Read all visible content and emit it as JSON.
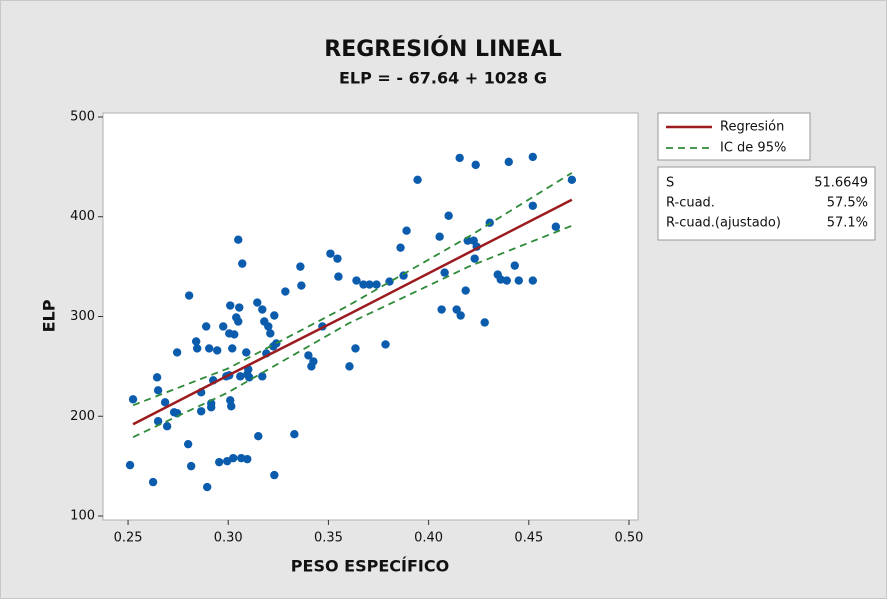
{
  "chart_data": {
    "type": "scatter",
    "title": "REGRESIÓN LINEAL",
    "subtitle": "ELP = - 67.64 + 1028 G",
    "x_label": "PESO ESPECÍFICO",
    "y_label": "ELP",
    "xlim": [
      0.2375,
      0.5045
    ],
    "ylim": [
      96,
      504
    ],
    "xticks": [
      {
        "value": 0.25,
        "label": "0.25"
      },
      {
        "value": 0.3,
        "label": "0.30"
      },
      {
        "value": 0.35,
        "label": "0.35"
      },
      {
        "value": 0.4,
        "label": "0.40"
      },
      {
        "value": 0.45,
        "label": "0.45"
      },
      {
        "value": 0.5,
        "label": "0.50"
      }
    ],
    "yticks": [
      100,
      200,
      300,
      400,
      500
    ],
    "points": {
      "color": "#0b5cad",
      "x": [
        0.251,
        0.2525,
        0.2625,
        0.2645,
        0.265,
        0.265,
        0.2685,
        0.2695,
        0.273,
        0.2745,
        0.2745,
        0.2805,
        0.28,
        0.2815,
        0.284,
        0.2845,
        0.2865,
        0.2865,
        0.2895,
        0.289,
        0.2905,
        0.2915,
        0.2915,
        0.2925,
        0.2945,
        0.2955,
        0.2975,
        0.299,
        0.2995,
        0.3005,
        0.3005,
        0.301,
        0.301,
        0.3015,
        0.302,
        0.3025,
        0.303,
        0.304,
        0.305,
        0.3055,
        0.306,
        0.3065,
        0.307,
        0.305,
        0.309,
        0.3095,
        0.3095,
        0.31,
        0.3105,
        0.3145,
        0.315,
        0.317,
        0.317,
        0.318,
        0.319,
        0.32,
        0.321,
        0.3225,
        0.323,
        0.323,
        0.324,
        0.3285,
        0.333,
        0.336,
        0.3365,
        0.34,
        0.3415,
        0.3425,
        0.347,
        0.351,
        0.3545,
        0.355,
        0.3605,
        0.3635,
        0.364,
        0.3675,
        0.3705,
        0.374,
        0.3785,
        0.3805,
        0.386,
        0.3875,
        0.389,
        0.3945,
        0.4055,
        0.4065,
        0.408,
        0.41,
        0.414,
        0.4155,
        0.416,
        0.4185,
        0.4195,
        0.4225,
        0.423,
        0.4235,
        0.424,
        0.428,
        0.4305,
        0.4345,
        0.436,
        0.439,
        0.44,
        0.443,
        0.445,
        0.452,
        0.452,
        0.452,
        0.4635,
        0.4715
      ],
      "values": [
        151,
        217,
        134,
        239,
        226,
        195,
        214,
        190,
        204,
        203,
        264,
        321,
        172,
        150,
        275,
        268,
        224,
        205,
        129,
        290,
        268,
        213,
        209,
        236,
        266,
        154,
        290,
        240,
        155,
        283,
        241,
        311,
        216,
        210,
        268,
        158,
        282,
        299,
        377,
        309,
        240,
        158,
        353,
        295,
        264,
        157,
        242,
        247,
        239,
        314,
        180,
        240,
        307,
        295,
        263,
        290,
        283,
        270,
        141,
        301,
        273,
        325,
        182,
        350,
        331,
        261,
        250,
        255,
        290,
        363,
        358,
        340,
        250,
        268,
        336,
        332,
        332,
        332,
        272,
        335,
        369,
        341,
        386,
        437,
        380,
        307,
        344,
        401,
        307,
        459,
        301,
        326,
        376,
        376,
        358,
        452,
        370,
        294,
        394,
        342,
        337,
        336,
        455,
        351,
        336,
        411,
        460,
        336,
        390,
        437
      ]
    },
    "series": [
      {
        "name": "Regresión",
        "color": "#9b1b1f",
        "x": [
          0.2525,
          0.3,
          0.36,
          0.42,
          0.4715
        ],
        "values": [
          192,
          241,
          302,
          364,
          417
        ]
      },
      {
        "name": "IC de 95%",
        "color": "#2e8b3a",
        "dashed": true,
        "x": [
          0.2525,
          0.3,
          0.36,
          0.42,
          0.4715
        ],
        "values": [
          211,
          248,
          311,
          380,
          444
        ],
        "lower": [
          179,
          224,
          293,
          350,
          391
        ]
      }
    ],
    "stats": [
      [
        "S",
        "51.6649"
      ],
      [
        "R-cuad.",
        "57.5%"
      ],
      [
        "R-cuad.(ajustado)",
        "57.1%"
      ]
    ]
  }
}
